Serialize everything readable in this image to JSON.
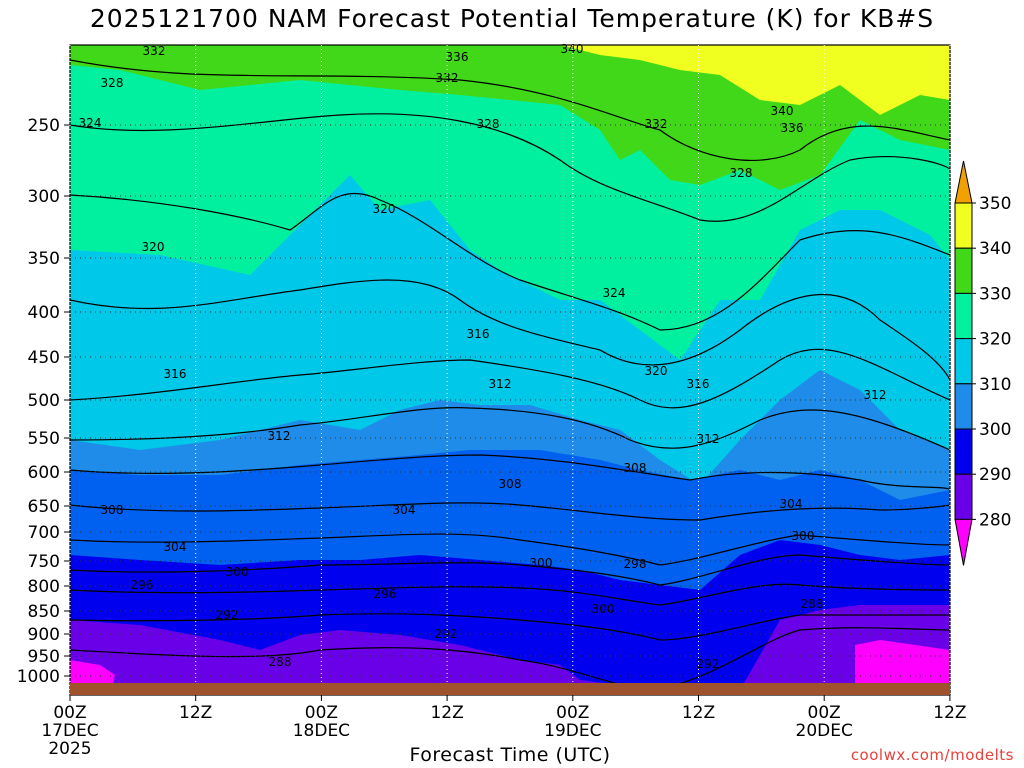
{
  "chart_data": {
    "type": "contour-time-height",
    "title": "2025121700 NAM Forecast Potential Temperature (K) for KB#S",
    "xlabel": "Forecast Time (UTC)",
    "ylabel": "",
    "y_ticks": [
      "250",
      "300",
      "350",
      "400",
      "450",
      "500",
      "550",
      "600",
      "650",
      "700",
      "750",
      "800",
      "850",
      "900",
      "950",
      "1000"
    ],
    "x_ticks": [
      {
        "top": "00Z",
        "mid": "17DEC",
        "bot": "2025"
      },
      {
        "top": "12Z",
        "mid": "",
        "bot": ""
      },
      {
        "top": "00Z",
        "mid": "18DEC",
        "bot": ""
      },
      {
        "top": "12Z",
        "mid": "",
        "bot": ""
      },
      {
        "top": "00Z",
        "mid": "19DEC",
        "bot": ""
      },
      {
        "top": "12Z",
        "mid": "",
        "bot": ""
      },
      {
        "top": "00Z",
        "mid": "20DEC",
        "bot": ""
      },
      {
        "top": "12Z",
        "mid": "",
        "bot": ""
      }
    ],
    "colorbar": {
      "levels": [
        "280",
        "290",
        "300",
        "310",
        "320",
        "330",
        "340",
        "350"
      ],
      "colors": [
        "#ff00ff",
        "#a000f0",
        "#6a00e8",
        "#0000ee",
        "#0060f0",
        "#1e8ce8",
        "#00c8e8",
        "#00f0a0",
        "#40d818",
        "#f0ff20",
        "#f0c800",
        "#f0a000"
      ]
    },
    "contour_labels": [
      "332",
      "336",
      "340",
      "328",
      "332",
      "324",
      "328",
      "332",
      "340",
      "336",
      "328",
      "320",
      "320",
      "324",
      "316",
      "316",
      "320",
      "316",
      "312",
      "312",
      "312",
      "312",
      "308",
      "308",
      "308",
      "304",
      "304",
      "304",
      "300",
      "300",
      "300",
      "298",
      "296",
      "296",
      "292",
      "292",
      "288",
      "288",
      "292",
      "300"
    ],
    "source": "coolwx.com/modelts"
  }
}
